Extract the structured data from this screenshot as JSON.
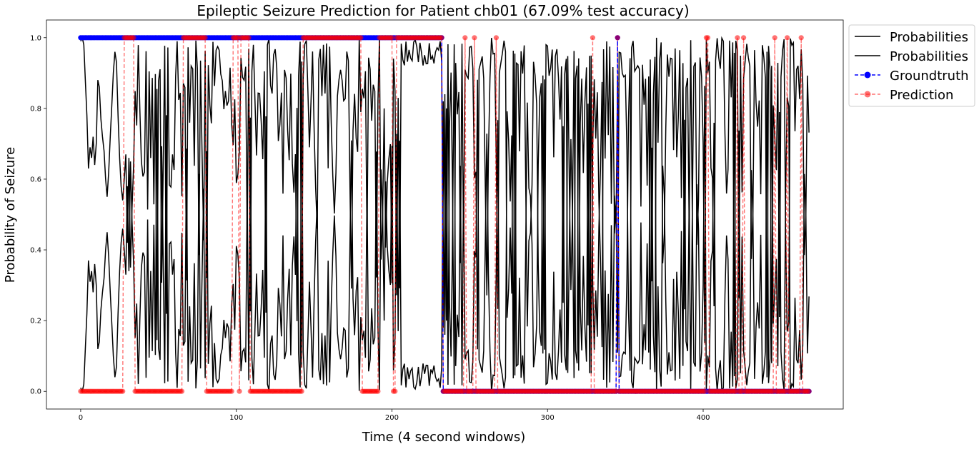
{
  "chart_data": {
    "type": "line",
    "title": "Epileptic Seizure Prediction for Patient chb01 (67.09% test accuracy)",
    "xlabel": "Time (4 second windows)",
    "ylabel": "Probability of Seizure",
    "xlim": [
      -22,
      490
    ],
    "ylim": [
      -0.05,
      1.05
    ],
    "xticks": [
      0,
      100,
      200,
      300,
      400
    ],
    "yticks": [
      0.0,
      0.2,
      0.4,
      0.6,
      0.8,
      1.0
    ],
    "ytick_labels": [
      "0.0",
      "0.2",
      "0.4",
      "0.6",
      "0.8",
      "1.0"
    ],
    "grid": false,
    "legend_position": "outside upper-right",
    "n_windows": 469,
    "seizure_onset_window": 233,
    "colors": {
      "probabilities": "#000000",
      "groundtruth": "#0000ff",
      "prediction": "#ff0000"
    },
    "series": [
      {
        "name": "Probabilities",
        "style": "solid black line",
        "values_head": [
          0.99,
          1.0,
          0.98,
          0.88,
          0.78,
          0.63,
          0.69,
          0.66,
          0.72,
          0.64,
          0.7,
          0.88,
          0.86,
          0.77,
          0.72,
          0.68,
          0.6,
          0.55,
          0.62,
          0.72,
          0.81,
          0.9,
          0.96,
          0.93,
          0.78,
          0.66,
          0.58,
          0.54,
          0.6,
          0.67,
          0.42,
          0.66,
          0.35,
          0.52
        ]
      },
      {
        "name": "Probabilities",
        "style": "solid black line (complement, 1 - p)",
        "values_head": [
          0.01,
          0.0,
          0.02,
          0.12,
          0.22,
          0.37,
          0.31,
          0.34,
          0.28,
          0.36,
          0.3,
          0.12,
          0.14,
          0.23,
          0.28,
          0.32,
          0.4,
          0.45,
          0.38,
          0.28,
          0.19,
          0.1,
          0.04,
          0.07,
          0.22,
          0.34,
          0.42,
          0.46,
          0.4,
          0.33,
          0.58,
          0.34,
          0.65,
          0.48
        ]
      },
      {
        "name": "Groundtruth",
        "style": "blue dashed line with circle markers",
        "segments": [
          {
            "x_start": 0,
            "x_end": 232,
            "y": 1
          },
          {
            "x_start": 233,
            "x_end": 469,
            "y": 0
          },
          {
            "x_start": 345,
            "x_end": 345,
            "y": 1
          }
        ]
      },
      {
        "name": "Prediction",
        "style": "red translucent dashed line with circle markers",
        "ones_at": [
          28,
          29,
          30,
          31,
          32,
          33,
          34,
          66,
          67,
          68,
          69,
          70,
          71,
          72,
          73,
          74,
          75,
          76,
          77,
          78,
          79,
          80,
          98,
          99,
          100,
          101,
          103,
          104,
          105,
          106,
          107,
          108,
          143,
          144,
          145,
          146,
          147,
          148,
          149,
          150,
          151,
          152,
          153,
          154,
          155,
          156,
          157,
          158,
          159,
          160,
          161,
          162,
          163,
          164,
          165,
          166,
          167,
          168,
          169,
          170,
          171,
          172,
          173,
          174,
          175,
          176,
          177,
          178,
          179,
          180,
          192,
          193,
          194,
          195,
          196,
          197,
          198,
          199,
          200,
          203,
          204,
          205,
          206,
          207,
          208,
          209,
          210,
          211,
          212,
          213,
          214,
          215,
          216,
          217,
          218,
          219,
          220,
          221,
          222,
          223,
          224,
          225,
          226,
          227,
          228,
          229,
          230,
          231,
          232,
          247,
          253,
          267,
          329,
          345,
          402,
          403,
          422,
          426,
          446,
          454,
          463
        ]
      }
    ],
    "legend": [
      "Probabilities",
      "Probabilities",
      "Groundtruth",
      "Prediction"
    ]
  }
}
